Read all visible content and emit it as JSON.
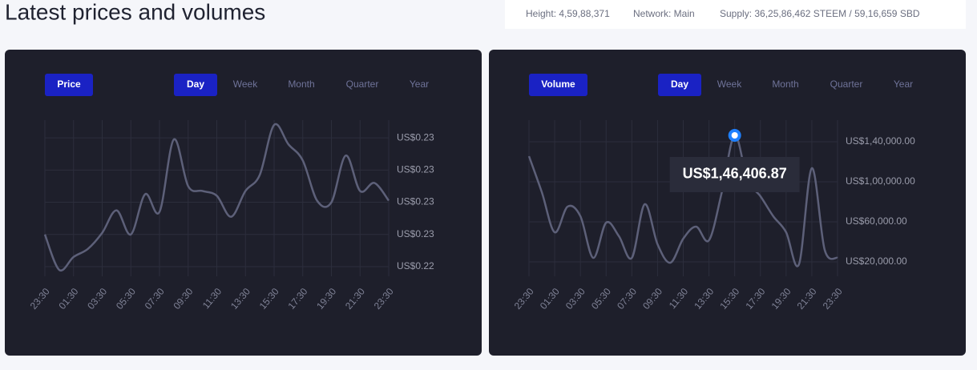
{
  "header": {
    "title": "Latest prices and volumes",
    "stats": [
      "Height: 4,59,88,371",
      "Network: Main",
      "Supply: 36,25,86,462 STEEM / 59,16,659 SBD"
    ]
  },
  "chart_data": [
    {
      "type": "line",
      "label": "Price",
      "ranges": [
        "Day",
        "Week",
        "Month",
        "Quarter",
        "Year"
      ],
      "active_range": 0,
      "categories": [
        "23:30",
        null,
        "01:30",
        null,
        "03:30",
        null,
        "05:30",
        null,
        "07:30",
        null,
        "09:30",
        null,
        "11:30",
        null,
        "13:30",
        null,
        "15:30",
        null,
        "17:30",
        null,
        "19:30",
        null,
        "21:30",
        null,
        "23:30"
      ],
      "series": [
        {
          "name": "Price",
          "color": "#5d6079",
          "values": [
            0.226,
            0.2238,
            0.2246,
            0.2251,
            0.2261,
            0.2275,
            0.226,
            0.2285,
            0.2274,
            0.2319,
            0.229,
            0.2287,
            0.2284,
            0.2271,
            0.2287,
            0.2297,
            0.2328,
            0.2316,
            0.2306,
            0.2281,
            0.228,
            0.2309,
            0.2287,
            0.2292,
            0.2281
          ]
        }
      ],
      "ylim": [
        0.2234,
        0.2331
      ],
      "yticks": [
        {
          "value": 0.232,
          "label": "US$0.23"
        },
        {
          "value": 0.23,
          "label": "US$0.23"
        },
        {
          "value": 0.228,
          "label": "US$0.23"
        },
        {
          "value": 0.226,
          "label": "US$0.23"
        },
        {
          "value": 0.224,
          "label": "US$0.22"
        }
      ],
      "grid": true
    },
    {
      "type": "line",
      "label": "Volume",
      "ranges": [
        "Day",
        "Week",
        "Month",
        "Quarter",
        "Year"
      ],
      "active_range": 0,
      "categories": [
        "23:30",
        null,
        "01:30",
        null,
        "03:30",
        null,
        "05:30",
        null,
        "07:30",
        null,
        "09:30",
        null,
        "11:30",
        null,
        "13:30",
        null,
        "15:30",
        null,
        "17:30",
        null,
        "19:30",
        null,
        "21:30",
        null,
        "23:30"
      ],
      "series": [
        {
          "name": "Volume",
          "color": "#5d6079",
          "values": [
            125600,
            89600,
            49600,
            75200,
            65600,
            24000,
            59200,
            45600,
            24000,
            77600,
            37600,
            19200,
            43200,
            55200,
            41600,
            89600,
            146406.87,
            101600,
            85600,
            65600,
            49600,
            17600,
            113600,
            32000,
            24000
          ],
          "value_labels": [
            null,
            null,
            null,
            null,
            null,
            null,
            null,
            null,
            null,
            null,
            null,
            null,
            null,
            null,
            null,
            null,
            "US$1,46,406.87",
            null,
            null,
            null,
            null,
            null,
            null,
            null,
            null
          ]
        }
      ],
      "ylim": [
        5600,
        161600
      ],
      "yticks": [
        {
          "value": 140000,
          "label": "US$1,40,000.00"
        },
        {
          "value": 100000,
          "label": "US$1,00,000.00"
        },
        {
          "value": 60000,
          "label": "US$60,000.00"
        },
        {
          "value": 20000,
          "label": "US$20,000.00"
        }
      ],
      "grid": true
    }
  ]
}
